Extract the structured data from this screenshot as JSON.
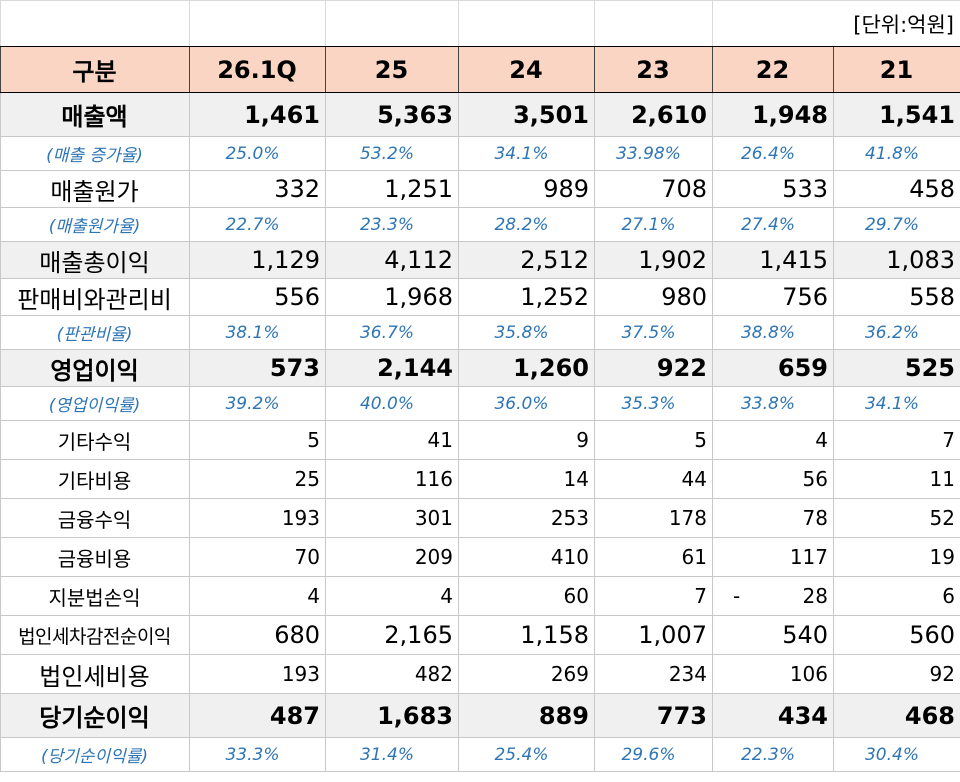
{
  "unit_label": "[단위:억원]",
  "header": {
    "label": "구분",
    "periods": [
      "26.1Q",
      "25",
      "24",
      "23",
      "22",
      "21"
    ]
  },
  "rows": [
    {
      "label": "매출액",
      "values": [
        "1,461",
        "5,363",
        "3,501",
        "2,610",
        "1,948",
        "1,541"
      ]
    },
    {
      "label": "(매출 증가율)",
      "values": [
        "25.0%",
        "53.2%",
        "34.1%",
        "33.98%",
        "26.4%",
        "41.8%"
      ]
    },
    {
      "label": "매출원가",
      "values": [
        "332",
        "1,251",
        "989",
        "708",
        "533",
        "458"
      ]
    },
    {
      "label": "(매출원가율)",
      "values": [
        "22.7%",
        "23.3%",
        "28.2%",
        "27.1%",
        "27.4%",
        "29.7%"
      ]
    },
    {
      "label": "매출총이익",
      "values": [
        "1,129",
        "4,112",
        "2,512",
        "1,902",
        "1,415",
        "1,083"
      ]
    },
    {
      "label": "판매비와관리비",
      "values": [
        "556",
        "1,968",
        "1,252",
        "980",
        "756",
        "558"
      ]
    },
    {
      "label": "(판관비율)",
      "values": [
        "38.1%",
        "36.7%",
        "35.8%",
        "37.5%",
        "38.8%",
        "36.2%"
      ]
    },
    {
      "label": "영업이익",
      "values": [
        "573",
        "2,144",
        "1,260",
        "922",
        "659",
        "525"
      ]
    },
    {
      "label": "(영업이익률)",
      "values": [
        "39.2%",
        "40.0%",
        "36.0%",
        "35.3%",
        "33.8%",
        "34.1%"
      ]
    },
    {
      "label": "기타수익",
      "values": [
        "5",
        "41",
        "9",
        "5",
        "4",
        "7"
      ]
    },
    {
      "label": "기타비용",
      "values": [
        "25",
        "116",
        "14",
        "44",
        "56",
        "11"
      ]
    },
    {
      "label": "금융수익",
      "values": [
        "193",
        "301",
        "253",
        "178",
        "78",
        "52"
      ]
    },
    {
      "label": "금융비용",
      "values": [
        "70",
        "209",
        "410",
        "61",
        "117",
        "19"
      ]
    },
    {
      "label": "지분법손익",
      "values": [
        "4",
        "4",
        "60",
        "7",
        "28",
        "6"
      ],
      "dash": "-"
    },
    {
      "label": "법인세차감전순이익",
      "values": [
        "680",
        "2,165",
        "1,158",
        "1,007",
        "540",
        "560"
      ]
    },
    {
      "label": "법인세비용",
      "values": [
        "193",
        "482",
        "269",
        "234",
        "106",
        "92"
      ]
    },
    {
      "label": "당기순이익",
      "values": [
        "487",
        "1,683",
        "889",
        "773",
        "434",
        "468"
      ]
    },
    {
      "label": "(당기순이익률)",
      "values": [
        "33.3%",
        "31.4%",
        "25.4%",
        "29.6%",
        "22.3%",
        "30.4%"
      ]
    }
  ]
}
